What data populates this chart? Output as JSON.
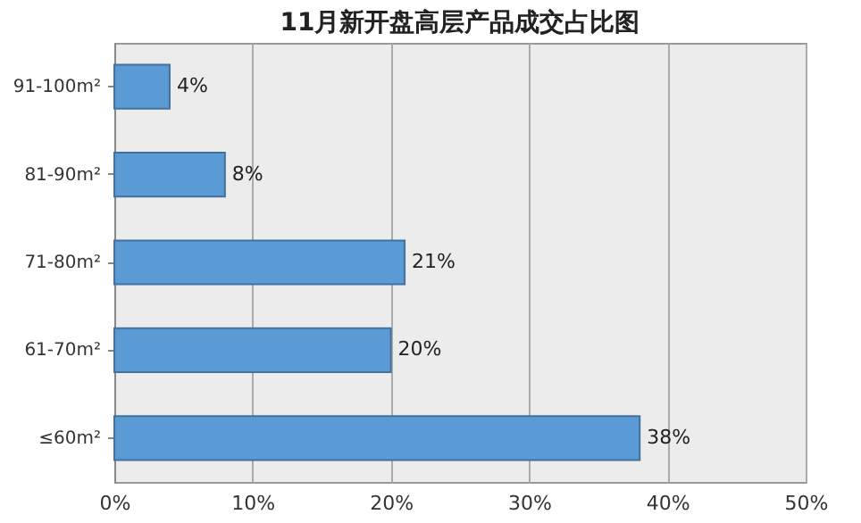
{
  "chart_data": {
    "type": "bar",
    "orientation": "horizontal",
    "title": "11月新开盘高层产品成交占比图",
    "categories": [
      "91-100m²",
      "81-90m²",
      "71-80m²",
      "61-70m²",
      "≤60m²"
    ],
    "values": [
      4,
      8,
      21,
      20,
      38
    ],
    "value_labels": [
      "4%",
      "8%",
      "21%",
      "20%",
      "38%"
    ],
    "color": "#5b9bd5",
    "xlim": [
      0,
      50
    ],
    "xticks": [
      {
        "value": 0,
        "label": "0%"
      },
      {
        "value": 10,
        "label": "10%"
      },
      {
        "value": 20,
        "label": "20%"
      },
      {
        "value": 30,
        "label": "30%"
      },
      {
        "value": 40,
        "label": "40%"
      },
      {
        "value": 50,
        "label": "50%"
      }
    ],
    "grid": "x"
  }
}
